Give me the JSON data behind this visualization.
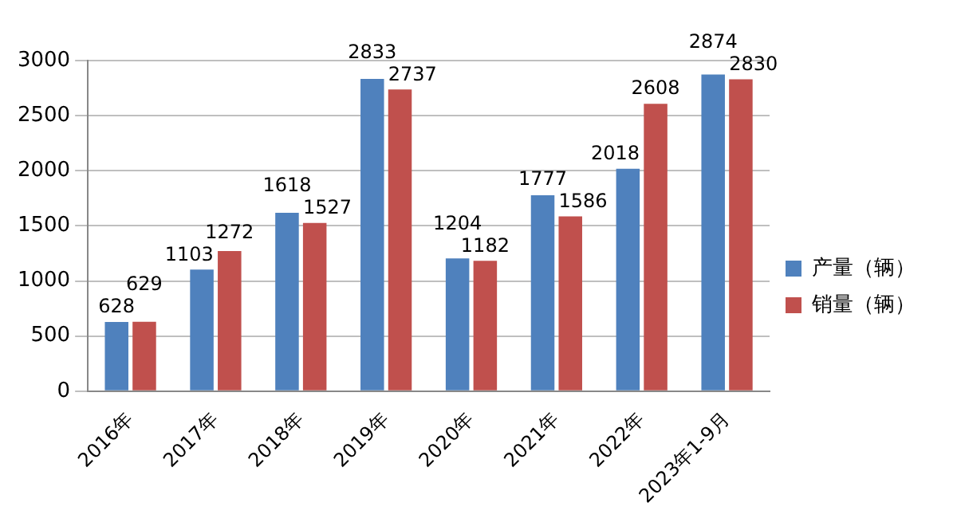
{
  "chart_data": {
    "type": "bar",
    "categories": [
      "2016年",
      "2017年",
      "2018年",
      "2019年",
      "2020年",
      "2021年",
      "2022年",
      "2023年1-9月"
    ],
    "series": [
      {
        "name": "产量（辆）",
        "color": "#4f81bd",
        "values": [
          628,
          1103,
          1618,
          2833,
          1204,
          1777,
          2018,
          2874
        ]
      },
      {
        "name": "销量（辆）",
        "color": "#c0504d",
        "values": [
          629,
          1272,
          1527,
          2737,
          1182,
          1586,
          2608,
          2830
        ]
      }
    ],
    "ylim": [
      0,
      3000
    ],
    "yticks": [
      0,
      500,
      1000,
      1500,
      2000,
      2500,
      3000
    ],
    "grid": "y",
    "legend": "right",
    "data_labels": true
  }
}
